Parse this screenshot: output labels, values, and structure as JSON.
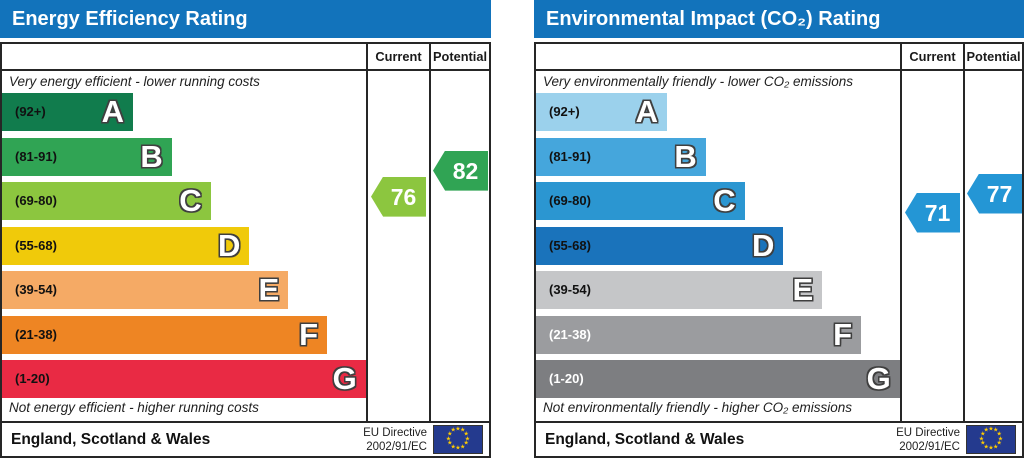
{
  "page": {
    "background": "#ffffff"
  },
  "colors": {
    "banner": "#1273bb",
    "border": "#262626",
    "band_letter_fill": "#ffffff",
    "band_letter_outline": "#3f3f3f",
    "flag_bg": "#243a8e",
    "flag_star": "#ffcc00"
  },
  "chart_data": [
    {
      "type": "bar",
      "variant": "epc-energy-efficiency",
      "title": "Energy Efficiency Rating",
      "column_headers": [
        "Current",
        "Potential"
      ],
      "top_note": "Very energy efficient - lower running costs",
      "bottom_note": "Not energy efficient - higher running costs",
      "bands": [
        {
          "letter": "A",
          "range_label": "(92+)",
          "min": 92,
          "max": 100,
          "color": "#117c4d",
          "label_color": "#111111"
        },
        {
          "letter": "B",
          "range_label": "(81-91)",
          "min": 81,
          "max": 91,
          "color": "#30a454",
          "label_color": "#111111"
        },
        {
          "letter": "C",
          "range_label": "(69-80)",
          "min": 69,
          "max": 80,
          "color": "#8cc63f",
          "label_color": "#111111"
        },
        {
          "letter": "D",
          "range_label": "(55-68)",
          "min": 55,
          "max": 68,
          "color": "#f0ca0a",
          "label_color": "#111111"
        },
        {
          "letter": "E",
          "range_label": "(39-54)",
          "min": 39,
          "max": 54,
          "color": "#f5aa65",
          "label_color": "#111111"
        },
        {
          "letter": "F",
          "range_label": "(21-38)",
          "min": 21,
          "max": 38,
          "color": "#ee8523",
          "label_color": "#111111"
        },
        {
          "letter": "G",
          "range_label": "(1-20)",
          "min": 1,
          "max": 20,
          "color": "#e92a44",
          "label_color": "#111111"
        }
      ],
      "current": {
        "value": 76,
        "arrow_color": "#8cc63f"
      },
      "potential": {
        "value": 82,
        "arrow_color": "#30a454"
      },
      "footer_region": "England, Scotland & Wales",
      "footer_directive": [
        "EU Directive",
        "2002/91/EC"
      ]
    },
    {
      "type": "bar",
      "variant": "epc-environmental-impact-co2",
      "title": "Environmental Impact (CO₂) Rating",
      "column_headers": [
        "Current",
        "Potential"
      ],
      "top_note": "Very environmentally friendly - lower CO₂ emissions",
      "bottom_note": "Not environmentally friendly - higher CO₂ emissions",
      "bands": [
        {
          "letter": "A",
          "range_label": "(92+)",
          "min": 92,
          "max": 100,
          "color": "#9bd1ec",
          "label_color": "#111111"
        },
        {
          "letter": "B",
          "range_label": "(81-91)",
          "min": 81,
          "max": 91,
          "color": "#45a6dc",
          "label_color": "#111111"
        },
        {
          "letter": "C",
          "range_label": "(69-80)",
          "min": 69,
          "max": 80,
          "color": "#2b96d1",
          "label_color": "#111111"
        },
        {
          "letter": "D",
          "range_label": "(55-68)",
          "min": 55,
          "max": 68,
          "color": "#1a73bb",
          "label_color": "#111111"
        },
        {
          "letter": "E",
          "range_label": "(39-54)",
          "min": 39,
          "max": 54,
          "color": "#c5c6c8",
          "label_color": "#111111"
        },
        {
          "letter": "F",
          "range_label": "(21-38)",
          "min": 21,
          "max": 38,
          "color": "#9b9c9f",
          "label_color": "#ffffff"
        },
        {
          "letter": "G",
          "range_label": "(1-20)",
          "min": 1,
          "max": 20,
          "color": "#7d7e81",
          "label_color": "#ffffff"
        }
      ],
      "current": {
        "value": 71,
        "arrow_color": "#2496d5"
      },
      "potential": {
        "value": 77,
        "arrow_color": "#2496d5"
      },
      "footer_region": "England, Scotland & Wales",
      "footer_directive": [
        "EU Directive",
        "2002/91/EC"
      ]
    }
  ]
}
